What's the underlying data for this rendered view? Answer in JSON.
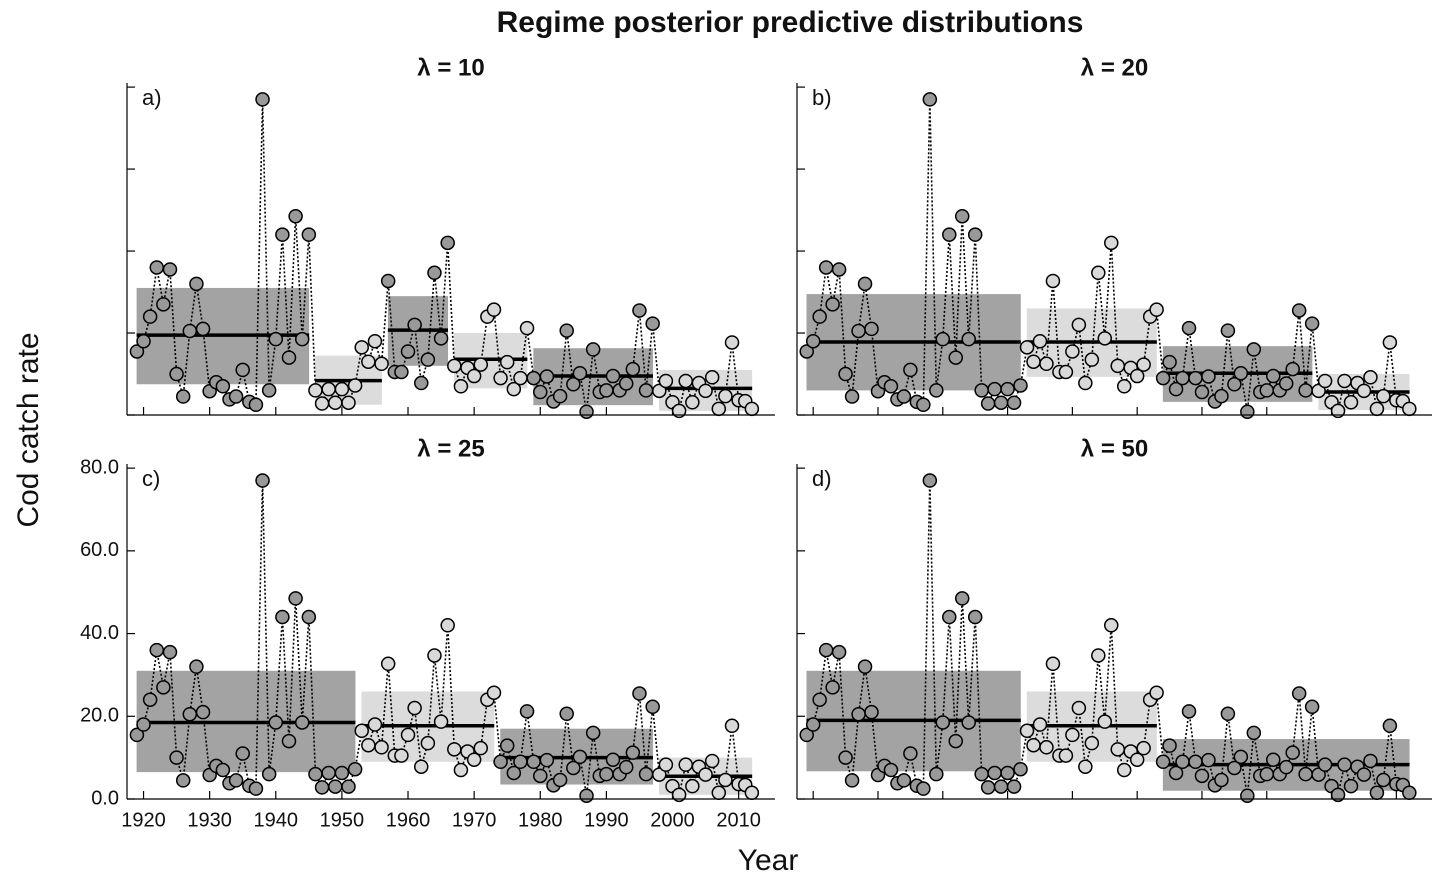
{
  "figure": {
    "title": "Regime posterior predictive distributions",
    "xlabel": "Year",
    "ylabel": "Cod catch rate"
  },
  "chart_data": [
    {
      "type": "line",
      "title": "λ = 10",
      "panel_label": "a)",
      "xlim": [
        1917.5,
        2015.5
      ],
      "ylim": [
        0,
        81
      ],
      "xticks": [
        1920,
        1930,
        1940,
        1950,
        1960,
        1970,
        1980,
        1990,
        2000,
        2010
      ],
      "xtick_labels": false,
      "yticks": [
        0,
        20,
        40,
        60,
        80
      ],
      "x": [
        1919,
        1920,
        1921,
        1922,
        1923,
        1924,
        1925,
        1926,
        1927,
        1928,
        1929,
        1930,
        1931,
        1932,
        1933,
        1934,
        1935,
        1936,
        1937,
        1938,
        1939,
        1940,
        1941,
        1942,
        1943,
        1944,
        1945,
        1946,
        1947,
        1948,
        1949,
        1950,
        1951,
        1952,
        1953,
        1954,
        1955,
        1956,
        1957,
        1958,
        1959,
        1960,
        1961,
        1962,
        1963,
        1964,
        1965,
        1966,
        1967,
        1968,
        1969,
        1970,
        1971,
        1972,
        1973,
        1974,
        1975,
        1976,
        1977,
        1978,
        1979,
        1980,
        1981,
        1982,
        1983,
        1984,
        1985,
        1986,
        1987,
        1988,
        1989,
        1990,
        1991,
        1992,
        1993,
        1994,
        1995,
        1996,
        1997,
        1998,
        1999,
        2000,
        2001,
        2002,
        2003,
        2004,
        2005,
        2006,
        2007,
        2008,
        2009,
        2010,
        2011,
        2012
      ],
      "values": [
        15.5,
        18,
        24,
        36,
        27,
        35.5,
        10,
        4.5,
        20.5,
        32,
        21,
        5.8,
        8,
        7,
        3.8,
        4.5,
        11,
        3.2,
        2.5,
        77,
        6,
        18.5,
        44,
        14,
        48.5,
        18.5,
        44,
        6,
        2.8,
        6.3,
        3,
        6.3,
        3,
        7.2,
        16.5,
        13,
        18,
        12.5,
        32.7,
        10.5,
        10.5,
        15.5,
        22,
        7.8,
        13.5,
        34.7,
        18.7,
        42,
        12,
        7,
        11.5,
        9.5,
        12.3,
        24,
        25.7,
        9,
        12.9,
        6.3,
        9,
        21.2,
        9,
        5.6,
        9.4,
        3.3,
        4.6,
        20.6,
        7.5,
        10.2,
        0.8,
        16,
        5.6,
        6,
        9.5,
        6,
        7.7,
        11.2,
        25.5,
        6,
        22.3,
        5.9,
        8.3,
        3.1,
        1,
        8.3,
        3.1,
        7.8,
        5.9,
        9.2,
        1.5,
        4.6,
        17.7,
        3.6,
        3.4,
        1.5
      ],
      "regimes": [
        {
          "start": 1919,
          "end": 1945,
          "mean": 19.5,
          "lower": 7.5,
          "upper": 31,
          "color": "#a3a3a3",
          "point_color": "#999999"
        },
        {
          "start": 1946,
          "end": 1956,
          "mean": 8.4,
          "lower": 2.5,
          "upper": 14.5,
          "color": "#dcdcdc",
          "point_color": "#d9d9d9"
        },
        {
          "start": 1957,
          "end": 1966,
          "mean": 20.7,
          "lower": 12,
          "upper": 29,
          "color": "#a3a3a3",
          "point_color": "#999999"
        },
        {
          "start": 1967,
          "end": 1978,
          "mean": 13.6,
          "lower": 6.5,
          "upper": 20,
          "color": "#dcdcdc",
          "point_color": "#d9d9d9"
        },
        {
          "start": 1979,
          "end": 1997,
          "mean": 9.5,
          "lower": 2.4,
          "upper": 16.3,
          "color": "#a3a3a3",
          "point_color": "#999999"
        },
        {
          "start": 1998,
          "end": 2012,
          "mean": 6.5,
          "lower": 1,
          "upper": 11,
          "color": "#dcdcdc",
          "point_color": "#d9d9d9"
        }
      ]
    },
    {
      "type": "line",
      "title": "λ = 20",
      "panel_label": "b)",
      "xlim": [
        1917.5,
        2015.5
      ],
      "ylim": [
        0,
        81
      ],
      "xticks": [
        1920,
        1930,
        1940,
        1950,
        1960,
        1970,
        1980,
        1990,
        2000,
        2010
      ],
      "xtick_labels": false,
      "yticks": [
        0,
        20,
        40,
        60,
        80
      ],
      "x": [
        1919,
        1920,
        1921,
        1922,
        1923,
        1924,
        1925,
        1926,
        1927,
        1928,
        1929,
        1930,
        1931,
        1932,
        1933,
        1934,
        1935,
        1936,
        1937,
        1938,
        1939,
        1940,
        1941,
        1942,
        1943,
        1944,
        1945,
        1946,
        1947,
        1948,
        1949,
        1950,
        1951,
        1952,
        1953,
        1954,
        1955,
        1956,
        1957,
        1958,
        1959,
        1960,
        1961,
        1962,
        1963,
        1964,
        1965,
        1966,
        1967,
        1968,
        1969,
        1970,
        1971,
        1972,
        1973,
        1974,
        1975,
        1976,
        1977,
        1978,
        1979,
        1980,
        1981,
        1982,
        1983,
        1984,
        1985,
        1986,
        1987,
        1988,
        1989,
        1990,
        1991,
        1992,
        1993,
        1994,
        1995,
        1996,
        1997,
        1998,
        1999,
        2000,
        2001,
        2002,
        2003,
        2004,
        2005,
        2006,
        2007,
        2008,
        2009,
        2010,
        2011,
        2012
      ],
      "values": [
        15.5,
        18,
        24,
        36,
        27,
        35.5,
        10,
        4.5,
        20.5,
        32,
        21,
        5.8,
        8,
        7,
        3.8,
        4.5,
        11,
        3.2,
        2.5,
        77,
        6,
        18.5,
        44,
        14,
        48.5,
        18.5,
        44,
        6,
        2.8,
        6.3,
        3,
        6.3,
        3,
        7.2,
        16.5,
        13,
        18,
        12.5,
        32.7,
        10.5,
        10.5,
        15.5,
        22,
        7.8,
        13.5,
        34.7,
        18.7,
        42,
        12,
        7,
        11.5,
        9.5,
        12.3,
        24,
        25.7,
        9,
        12.9,
        6.3,
        9,
        21.2,
        9,
        5.6,
        9.4,
        3.3,
        4.6,
        20.6,
        7.5,
        10.2,
        0.8,
        16,
        5.6,
        6,
        9.5,
        6,
        7.7,
        11.2,
        25.5,
        6,
        22.3,
        5.9,
        8.3,
        3.1,
        1,
        8.3,
        3.1,
        7.8,
        5.9,
        9.2,
        1.5,
        4.6,
        17.7,
        3.6,
        3.4,
        1.5
      ],
      "regimes": [
        {
          "start": 1919,
          "end": 1952,
          "mean": 17.8,
          "lower": 6,
          "upper": 29.5,
          "color": "#a3a3a3",
          "point_color": "#999999"
        },
        {
          "start": 1953,
          "end": 1973,
          "mean": 17.8,
          "lower": 9.3,
          "upper": 26,
          "color": "#dcdcdc",
          "point_color": "#d9d9d9"
        },
        {
          "start": 1974,
          "end": 1997,
          "mean": 10.2,
          "lower": 3.2,
          "upper": 16.8,
          "color": "#a3a3a3",
          "point_color": "#999999"
        },
        {
          "start": 1998,
          "end": 2012,
          "mean": 5.6,
          "lower": 1.2,
          "upper": 10,
          "color": "#dcdcdc",
          "point_color": "#d9d9d9"
        }
      ]
    },
    {
      "type": "line",
      "title": "λ = 25",
      "panel_label": "c)",
      "xlim": [
        1917.5,
        2015.5
      ],
      "ylim": [
        0,
        81
      ],
      "xticks": [
        1920,
        1930,
        1940,
        1950,
        1960,
        1970,
        1980,
        1990,
        2000,
        2010
      ],
      "xtick_labels": true,
      "yticks": [
        {
          "value": 0,
          "label": "0.0"
        },
        {
          "value": 20,
          "label": "20.0"
        },
        {
          "value": 40,
          "label": "40.0"
        },
        {
          "value": 60,
          "label": "60.0"
        },
        {
          "value": 80,
          "label": "80.0"
        }
      ],
      "x": [
        1919,
        1920,
        1921,
        1922,
        1923,
        1924,
        1925,
        1926,
        1927,
        1928,
        1929,
        1930,
        1931,
        1932,
        1933,
        1934,
        1935,
        1936,
        1937,
        1938,
        1939,
        1940,
        1941,
        1942,
        1943,
        1944,
        1945,
        1946,
        1947,
        1948,
        1949,
        1950,
        1951,
        1952,
        1953,
        1954,
        1955,
        1956,
        1957,
        1958,
        1959,
        1960,
        1961,
        1962,
        1963,
        1964,
        1965,
        1966,
        1967,
        1968,
        1969,
        1970,
        1971,
        1972,
        1973,
        1974,
        1975,
        1976,
        1977,
        1978,
        1979,
        1980,
        1981,
        1982,
        1983,
        1984,
        1985,
        1986,
        1987,
        1988,
        1989,
        1990,
        1991,
        1992,
        1993,
        1994,
        1995,
        1996,
        1997,
        1998,
        1999,
        2000,
        2001,
        2002,
        2003,
        2004,
        2005,
        2006,
        2007,
        2008,
        2009,
        2010,
        2011,
        2012
      ],
      "values": [
        15.5,
        18,
        24,
        36,
        27,
        35.5,
        10,
        4.5,
        20.5,
        32,
        21,
        5.8,
        8,
        7,
        3.8,
        4.5,
        11,
        3.2,
        2.5,
        77,
        6,
        18.5,
        44,
        14,
        48.5,
        18.5,
        44,
        6,
        2.8,
        6.3,
        3,
        6.3,
        3,
        7.2,
        16.5,
        13,
        18,
        12.5,
        32.7,
        10.5,
        10.5,
        15.5,
        22,
        7.8,
        13.5,
        34.7,
        18.7,
        42,
        12,
        7,
        11.5,
        9.5,
        12.3,
        24,
        25.7,
        9,
        12.9,
        6.3,
        9,
        21.2,
        9,
        5.6,
        9.4,
        3.3,
        4.6,
        20.6,
        7.5,
        10.2,
        0.8,
        16,
        5.6,
        6,
        9.5,
        6,
        7.7,
        11.2,
        25.5,
        6,
        22.3,
        5.9,
        8.3,
        3.1,
        1,
        8.3,
        3.1,
        7.8,
        5.9,
        9.2,
        1.5,
        4.6,
        17.7,
        3.6,
        3.4,
        1.5
      ],
      "regimes": [
        {
          "start": 1919,
          "end": 1952,
          "mean": 18.5,
          "lower": 6.5,
          "upper": 31,
          "color": "#a3a3a3",
          "point_color": "#999999"
        },
        {
          "start": 1953,
          "end": 1973,
          "mean": 17.7,
          "lower": 9,
          "upper": 26,
          "color": "#dcdcdc",
          "point_color": "#d9d9d9"
        },
        {
          "start": 1974,
          "end": 1997,
          "mean": 10,
          "lower": 3.5,
          "upper": 17,
          "color": "#a3a3a3",
          "point_color": "#999999"
        },
        {
          "start": 1998,
          "end": 2012,
          "mean": 5.5,
          "lower": 1,
          "upper": 10,
          "color": "#dcdcdc",
          "point_color": "#d9d9d9"
        }
      ]
    },
    {
      "type": "line",
      "title": "λ = 50",
      "panel_label": "d)",
      "xlim": [
        1917.5,
        2015.5
      ],
      "ylim": [
        0,
        81
      ],
      "xticks": [
        1920,
        1930,
        1940,
        1950,
        1960,
        1970,
        1980,
        1990,
        2000,
        2010
      ],
      "xtick_labels": false,
      "yticks": [
        0,
        20,
        40,
        60,
        80
      ],
      "x": [
        1919,
        1920,
        1921,
        1922,
        1923,
        1924,
        1925,
        1926,
        1927,
        1928,
        1929,
        1930,
        1931,
        1932,
        1933,
        1934,
        1935,
        1936,
        1937,
        1938,
        1939,
        1940,
        1941,
        1942,
        1943,
        1944,
        1945,
        1946,
        1947,
        1948,
        1949,
        1950,
        1951,
        1952,
        1953,
        1954,
        1955,
        1956,
        1957,
        1958,
        1959,
        1960,
        1961,
        1962,
        1963,
        1964,
        1965,
        1966,
        1967,
        1968,
        1969,
        1970,
        1971,
        1972,
        1973,
        1974,
        1975,
        1976,
        1977,
        1978,
        1979,
        1980,
        1981,
        1982,
        1983,
        1984,
        1985,
        1986,
        1987,
        1988,
        1989,
        1990,
        1991,
        1992,
        1993,
        1994,
        1995,
        1996,
        1997,
        1998,
        1999,
        2000,
        2001,
        2002,
        2003,
        2004,
        2005,
        2006,
        2007,
        2008,
        2009,
        2010,
        2011,
        2012
      ],
      "values": [
        15.5,
        18,
        24,
        36,
        27,
        35.5,
        10,
        4.5,
        20.5,
        32,
        21,
        5.8,
        8,
        7,
        3.8,
        4.5,
        11,
        3.2,
        2.5,
        77,
        6,
        18.5,
        44,
        14,
        48.5,
        18.5,
        44,
        6,
        2.8,
        6.3,
        3,
        6.3,
        3,
        7.2,
        16.5,
        13,
        18,
        12.5,
        32.7,
        10.5,
        10.5,
        15.5,
        22,
        7.8,
        13.5,
        34.7,
        18.7,
        42,
        12,
        7,
        11.5,
        9.5,
        12.3,
        24,
        25.7,
        9,
        12.9,
        6.3,
        9,
        21.2,
        9,
        5.6,
        9.4,
        3.3,
        4.6,
        20.6,
        7.5,
        10.2,
        0.8,
        16,
        5.6,
        6,
        9.5,
        6,
        7.7,
        11.2,
        25.5,
        6,
        22.3,
        5.9,
        8.3,
        3.1,
        1,
        8.3,
        3.1,
        7.8,
        5.9,
        9.2,
        1.5,
        4.6,
        17.7,
        3.6,
        3.4,
        1.5
      ],
      "regimes": [
        {
          "start": 1919,
          "end": 1952,
          "mean": 19,
          "lower": 6.7,
          "upper": 31,
          "color": "#a3a3a3",
          "point_color": "#999999"
        },
        {
          "start": 1953,
          "end": 1973,
          "mean": 17.7,
          "lower": 9,
          "upper": 26,
          "color": "#dcdcdc",
          "point_color": "#d9d9d9"
        },
        {
          "start": 1974,
          "end": 2012,
          "mean": 8.3,
          "lower": 2,
          "upper": 14.5,
          "color": "#a3a3a3",
          "point_color": "#999999"
        }
      ]
    }
  ]
}
